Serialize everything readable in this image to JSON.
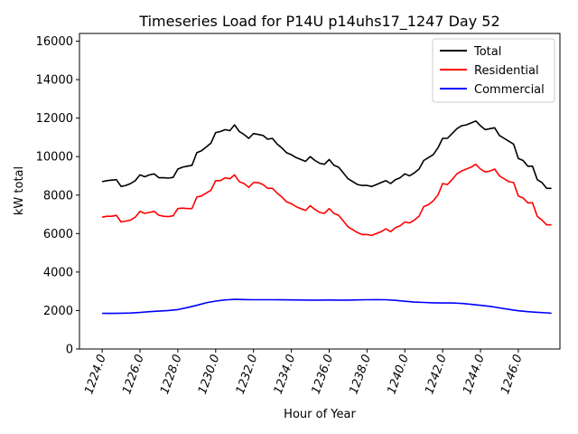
{
  "chart_data": {
    "type": "line",
    "title": "Timeseries Load for P14U p14uhs17_1247  Day 52",
    "xlabel": "Hour of Year",
    "ylabel": "kW total",
    "xlim": [
      1222.8,
      1248.2
    ],
    "ylim": [
      0,
      16400
    ],
    "xticks": [
      1224,
      1226,
      1228,
      1230,
      1232,
      1234,
      1236,
      1238,
      1240,
      1242,
      1244,
      1246
    ],
    "xtick_labels": [
      "1224.0",
      "1226.0",
      "1228.0",
      "1230.0",
      "1232.0",
      "1234.0",
      "1236.0",
      "1238.0",
      "1240.0",
      "1242.0",
      "1244.0",
      "1246.0"
    ],
    "yticks": [
      0,
      2000,
      4000,
      6000,
      8000,
      10000,
      12000,
      14000,
      16000
    ],
    "ytick_labels": [
      "0",
      "2000",
      "4000",
      "6000",
      "8000",
      "10000",
      "12000",
      "14000",
      "16000"
    ],
    "legend_position": "top-right",
    "series": [
      {
        "name": "Total",
        "color": "#000000",
        "x": [
          1224.0,
          1224.25,
          1224.5,
          1224.75,
          1225.0,
          1225.25,
          1225.5,
          1225.75,
          1226.0,
          1226.25,
          1226.5,
          1226.75,
          1227.0,
          1227.25,
          1227.5,
          1227.75,
          1228.0,
          1228.25,
          1228.5,
          1228.75,
          1229.0,
          1229.25,
          1229.5,
          1229.75,
          1230.0,
          1230.25,
          1230.5,
          1230.75,
          1231.0,
          1231.25,
          1231.5,
          1231.75,
          1232.0,
          1232.25,
          1232.5,
          1232.75,
          1233.0,
          1233.25,
          1233.5,
          1233.75,
          1234.0,
          1234.25,
          1234.5,
          1234.75,
          1235.0,
          1235.25,
          1235.5,
          1235.75,
          1236.0,
          1236.25,
          1236.5,
          1236.75,
          1237.0,
          1237.25,
          1237.5,
          1237.75,
          1238.0,
          1238.25,
          1238.5,
          1238.75,
          1239.0,
          1239.25,
          1239.5,
          1239.75,
          1240.0,
          1240.25,
          1240.5,
          1240.75,
          1241.0,
          1241.25,
          1241.5,
          1241.75,
          1242.0,
          1242.25,
          1242.5,
          1242.75,
          1243.0,
          1243.25,
          1243.5,
          1243.75,
          1244.0,
          1244.25,
          1244.5,
          1244.75,
          1245.0,
          1245.25,
          1245.5,
          1245.75,
          1246.0,
          1246.25,
          1246.5,
          1246.75,
          1247.0,
          1247.25,
          1247.5,
          1247.75
        ],
        "values": [
          8700,
          8750,
          8780,
          8800,
          8450,
          8500,
          8600,
          8750,
          9050,
          8950,
          9050,
          9100,
          8900,
          8900,
          8880,
          8920,
          9350,
          9450,
          9500,
          9550,
          10200,
          10300,
          10500,
          10700,
          11250,
          11300,
          11400,
          11350,
          11650,
          11300,
          11150,
          10950,
          11200,
          11150,
          11100,
          10900,
          10950,
          10650,
          10450,
          10200,
          10100,
          9950,
          9850,
          9750,
          10000,
          9800,
          9650,
          9600,
          9850,
          9550,
          9450,
          9150,
          8850,
          8700,
          8550,
          8500,
          8500,
          8450,
          8550,
          8650,
          8750,
          8600,
          8800,
          8900,
          9100,
          9000,
          9150,
          9350,
          9800,
          9950,
          10100,
          10450,
          10950,
          10950,
          11200,
          11450,
          11600,
          11650,
          11750,
          11850,
          11600,
          11400,
          11450,
          11500,
          11100,
          10950,
          10800,
          10650,
          9900,
          9800,
          9500,
          9500,
          8800,
          8650,
          8350,
          8350
        ]
      },
      {
        "name": "Residential",
        "color": "#ff0000",
        "x": [
          1224.0,
          1224.25,
          1224.5,
          1224.75,
          1225.0,
          1225.25,
          1225.5,
          1225.75,
          1226.0,
          1226.25,
          1226.5,
          1226.75,
          1227.0,
          1227.25,
          1227.5,
          1227.75,
          1228.0,
          1228.25,
          1228.5,
          1228.75,
          1229.0,
          1229.25,
          1229.5,
          1229.75,
          1230.0,
          1230.25,
          1230.5,
          1230.75,
          1231.0,
          1231.25,
          1231.5,
          1231.75,
          1232.0,
          1232.25,
          1232.5,
          1232.75,
          1233.0,
          1233.25,
          1233.5,
          1233.75,
          1234.0,
          1234.25,
          1234.5,
          1234.75,
          1235.0,
          1235.25,
          1235.5,
          1235.75,
          1236.0,
          1236.25,
          1236.5,
          1236.75,
          1237.0,
          1237.25,
          1237.5,
          1237.75,
          1238.0,
          1238.25,
          1238.5,
          1238.75,
          1239.0,
          1239.25,
          1239.5,
          1239.75,
          1240.0,
          1240.25,
          1240.5,
          1240.75,
          1241.0,
          1241.25,
          1241.5,
          1241.75,
          1242.0,
          1242.25,
          1242.5,
          1242.75,
          1243.0,
          1243.25,
          1243.5,
          1243.75,
          1244.0,
          1244.25,
          1244.5,
          1244.75,
          1245.0,
          1245.25,
          1245.5,
          1245.75,
          1246.0,
          1246.25,
          1246.5,
          1246.75,
          1247.0,
          1247.25,
          1247.5,
          1247.75
        ],
        "values": [
          6850,
          6900,
          6900,
          6950,
          6600,
          6650,
          6700,
          6850,
          7150,
          7050,
          7100,
          7150,
          6950,
          6900,
          6880,
          6920,
          7300,
          7320,
          7300,
          7300,
          7900,
          7950,
          8100,
          8250,
          8750,
          8750,
          8900,
          8850,
          9050,
          8700,
          8600,
          8400,
          8650,
          8650,
          8550,
          8350,
          8350,
          8100,
          7900,
          7650,
          7550,
          7400,
          7300,
          7200,
          7450,
          7250,
          7100,
          7050,
          7300,
          7050,
          6950,
          6650,
          6350,
          6200,
          6050,
          5950,
          5950,
          5900,
          6000,
          6100,
          6250,
          6100,
          6300,
          6400,
          6600,
          6550,
          6700,
          6900,
          7400,
          7500,
          7700,
          8000,
          8600,
          8550,
          8800,
          9100,
          9250,
          9350,
          9450,
          9600,
          9350,
          9200,
          9250,
          9350,
          9000,
          8850,
          8700,
          8650,
          7950,
          7850,
          7600,
          7600,
          6900,
          6700,
          6450,
          6450
        ]
      },
      {
        "name": "Commercial",
        "color": "#0000ff",
        "x": [
          1224.0,
          1224.5,
          1225.0,
          1225.5,
          1226.0,
          1226.5,
          1227.0,
          1227.5,
          1228.0,
          1228.5,
          1229.0,
          1229.5,
          1230.0,
          1230.5,
          1231.0,
          1231.5,
          1232.0,
          1232.5,
          1233.0,
          1233.5,
          1234.0,
          1234.5,
          1235.0,
          1235.5,
          1236.0,
          1236.5,
          1237.0,
          1237.5,
          1238.0,
          1238.5,
          1239.0,
          1239.5,
          1240.0,
          1240.5,
          1241.0,
          1241.5,
          1242.0,
          1242.5,
          1243.0,
          1243.5,
          1244.0,
          1244.5,
          1245.0,
          1245.5,
          1246.0,
          1246.5,
          1247.0,
          1247.5,
          1247.75
        ],
        "values": [
          1850,
          1850,
          1860,
          1870,
          1900,
          1940,
          1970,
          2000,
          2050,
          2150,
          2270,
          2400,
          2490,
          2550,
          2580,
          2570,
          2560,
          2560,
          2560,
          2555,
          2550,
          2545,
          2540,
          2540,
          2545,
          2540,
          2540,
          2550,
          2560,
          2565,
          2560,
          2530,
          2480,
          2440,
          2420,
          2400,
          2390,
          2390,
          2370,
          2320,
          2270,
          2220,
          2140,
          2060,
          1990,
          1940,
          1910,
          1880,
          1860
        ]
      }
    ]
  }
}
